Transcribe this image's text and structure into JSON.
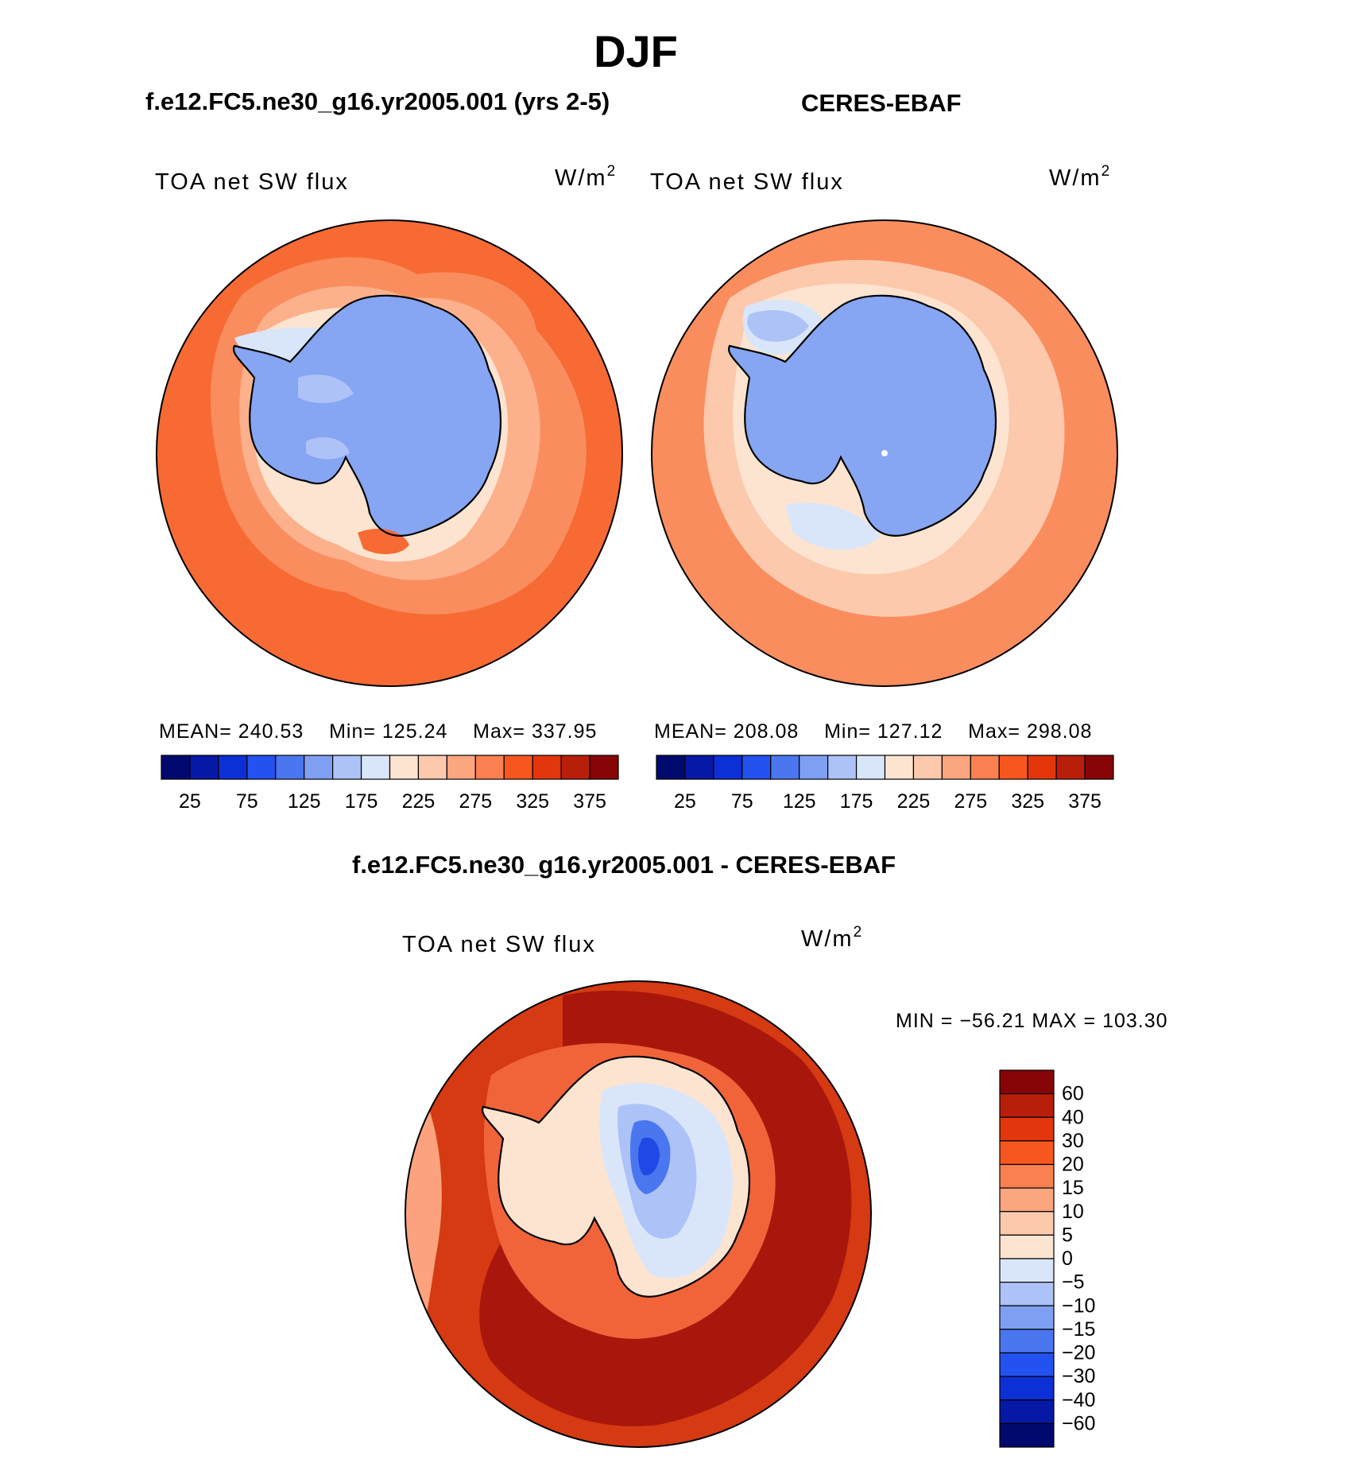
{
  "figure": {
    "title": "DJF"
  },
  "panels": [
    {
      "title": "f.e12.FC5.ne30_g16.yr2005.001 (yrs 2-5)",
      "variable": "TOA net SW flux",
      "units_base": "W/m",
      "units_exp": "2",
      "stats": {
        "mean_label": "MEAN=",
        "mean": "240.53",
        "min_label": "Min=",
        "min": "125.24",
        "max_label": "Max=",
        "max": "337.95"
      }
    },
    {
      "title": "CERES-EBAF",
      "variable": "TOA net SW flux",
      "units_base": "W/m",
      "units_exp": "2",
      "stats": {
        "mean_label": "MEAN=",
        "mean": "208.08",
        "min_label": "Min=",
        "min": "127.12",
        "max_label": "Max=",
        "max": "298.08"
      }
    }
  ],
  "diff_panel": {
    "title": "f.e12.FC5.ne30_g16.yr2005.001 - CERES-EBAF",
    "variable": "TOA net SW flux",
    "units_base": "W/m",
    "units_exp": "2",
    "minmax": "MIN = −56.21 MAX = 103.30"
  },
  "colorbars": {
    "absolute": {
      "colors": [
        "#000a6e",
        "#0519a6",
        "#0c2fd6",
        "#2352f0",
        "#4a77f0",
        "#7f9ff2",
        "#adc2f7",
        "#d9e6fa",
        "#fde4d0",
        "#fcc9ad",
        "#fba67e",
        "#f98050",
        "#f7571f",
        "#e3360c",
        "#b81f0a",
        "#870506"
      ],
      "ticks": [
        "25",
        "75",
        "125",
        "175",
        "225",
        "275",
        "325",
        "375"
      ]
    },
    "difference": {
      "colors": [
        "#000a6e",
        "#0519a6",
        "#0c2fd6",
        "#2352f0",
        "#4a77f0",
        "#7f9ff2",
        "#adc2f7",
        "#d9e6fa",
        "#fde4d0",
        "#fcc9ad",
        "#fba67e",
        "#f98050",
        "#f7571f",
        "#e3360c",
        "#b81f0a",
        "#870506"
      ],
      "ticks": [
        "60",
        "40",
        "30",
        "20",
        "15",
        "10",
        "5",
        "0",
        "−5",
        "−10",
        "−15",
        "−20",
        "−30",
        "−40",
        "−60"
      ]
    }
  },
  "map_colors": {
    "land": "#86a5f2",
    "land_light": "#adc2f7",
    "coast": "#000000",
    "p1_outer": "#f76a34",
    "p1_ring1": "#fa8d5e",
    "p1_ring2": "#fcb08c",
    "p1_ring3": "#fde4d0",
    "p1_ring4": "#d9e6fa",
    "p2_outer": "#fcc9ad",
    "p2_ring1": "#fde4d0",
    "p2_ring2": "#d9e6fa",
    "p2_ring3": "#adc2f7",
    "d_outer": "#a9170c",
    "d_ring1": "#d53a12",
    "d_ring2": "#f1643a",
    "d_ring3": "#fca27e",
    "d_ring4": "#fde4d0",
    "d_land1": "#d9e6fa",
    "d_land2": "#adc2f7",
    "d_land3": "#4a77f0",
    "d_land4": "#1f48e6"
  }
}
